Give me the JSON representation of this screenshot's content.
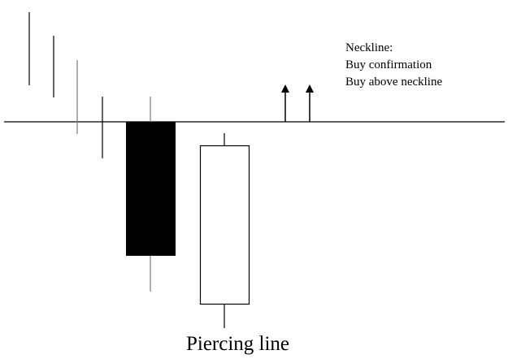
{
  "annotation": {
    "lines": [
      "Neckline:",
      "Buy confirmation",
      "Buy above neckline"
    ]
  },
  "caption": "Piercing line",
  "colors": {
    "ink": "#000000",
    "wick_gray": "#777777",
    "bullish_fill": "#ffffff",
    "bearish_fill": "#000000"
  }
}
